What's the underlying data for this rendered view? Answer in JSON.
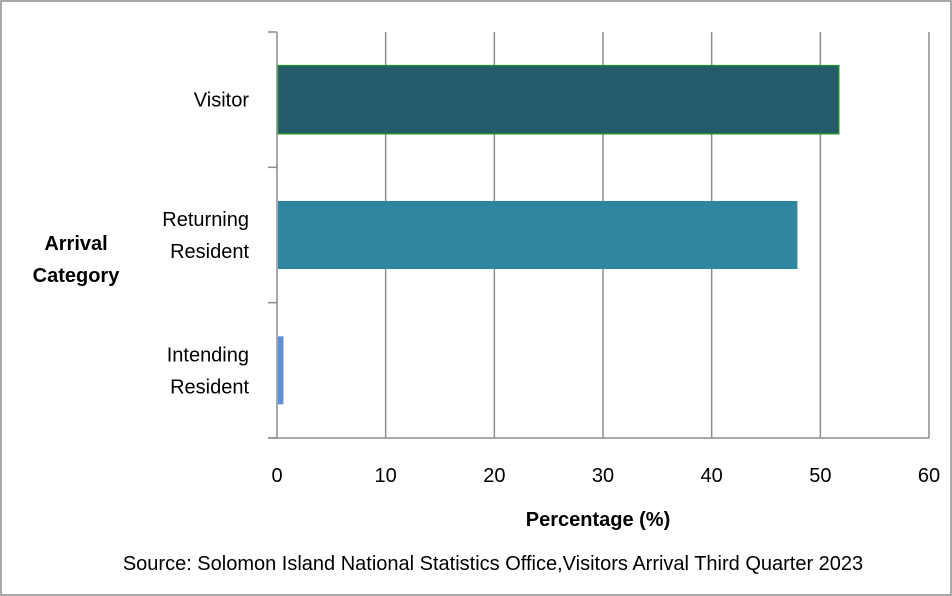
{
  "chart_data": {
    "type": "bar",
    "orientation": "horizontal",
    "title": "",
    "xlabel": "Percentage (%)",
    "ylabel_lines": [
      "Arrival",
      "Category"
    ],
    "xlim": [
      0,
      60
    ],
    "x_ticks": [
      0,
      10,
      20,
      30,
      40,
      50,
      60
    ],
    "grid": "vertical",
    "legend": "none",
    "categories": [
      {
        "lines": [
          "Visitor"
        ]
      },
      {
        "lines": [
          "Returning",
          "Resident"
        ]
      },
      {
        "lines": [
          "Intending",
          "Resident"
        ]
      }
    ],
    "values": [
      51.6,
      47.8,
      0.5
    ],
    "colors": [
      "#235b6b",
      "#2e879e",
      "#5b8fd6"
    ],
    "source": "Source: Solomon Island National Statistics Office,Visitors Arrival Third Quarter 2023"
  }
}
